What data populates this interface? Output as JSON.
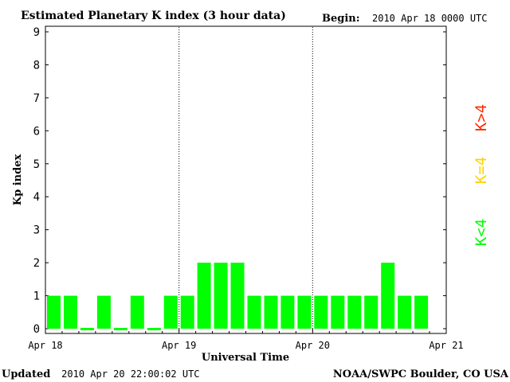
{
  "header": {
    "title": "Estimated Planetary K index (3 hour data)",
    "begin_label": "Begin:",
    "begin_value": "2010 Apr 18 0000 UTC"
  },
  "footer": {
    "updated_label": "Updated",
    "updated_value": "2010 Apr 20 22:00:02 UTC",
    "credit": "NOAA/SWPC Boulder, CO USA"
  },
  "legend": {
    "items": [
      {
        "label": "K>4",
        "color": "#ff2a00"
      },
      {
        "label": "K=4",
        "color": "#ffd200"
      },
      {
        "label": "K<4",
        "color": "#00ff00"
      }
    ]
  },
  "chart_data": {
    "type": "bar",
    "title": "Estimated Planetary K index (3 hour data)",
    "xlabel": "Universal Time",
    "ylabel": "Kp index",
    "ylim": [
      0,
      9
    ],
    "yticks": [
      "0",
      "1",
      "2",
      "3",
      "4",
      "5",
      "6",
      "7",
      "8",
      "9"
    ],
    "xticks": [
      "Apr 18",
      "Apr 19",
      "Apr 20",
      "Apr 21"
    ],
    "grid": "dotted vertical lines at day boundaries",
    "bar_color": "#00ff00",
    "interval_hours": 3,
    "values": [
      1,
      1,
      0,
      1,
      0,
      1,
      0,
      1,
      1,
      2,
      2,
      2,
      1,
      1,
      1,
      1,
      1,
      1,
      1,
      1,
      2,
      1,
      1
    ]
  }
}
